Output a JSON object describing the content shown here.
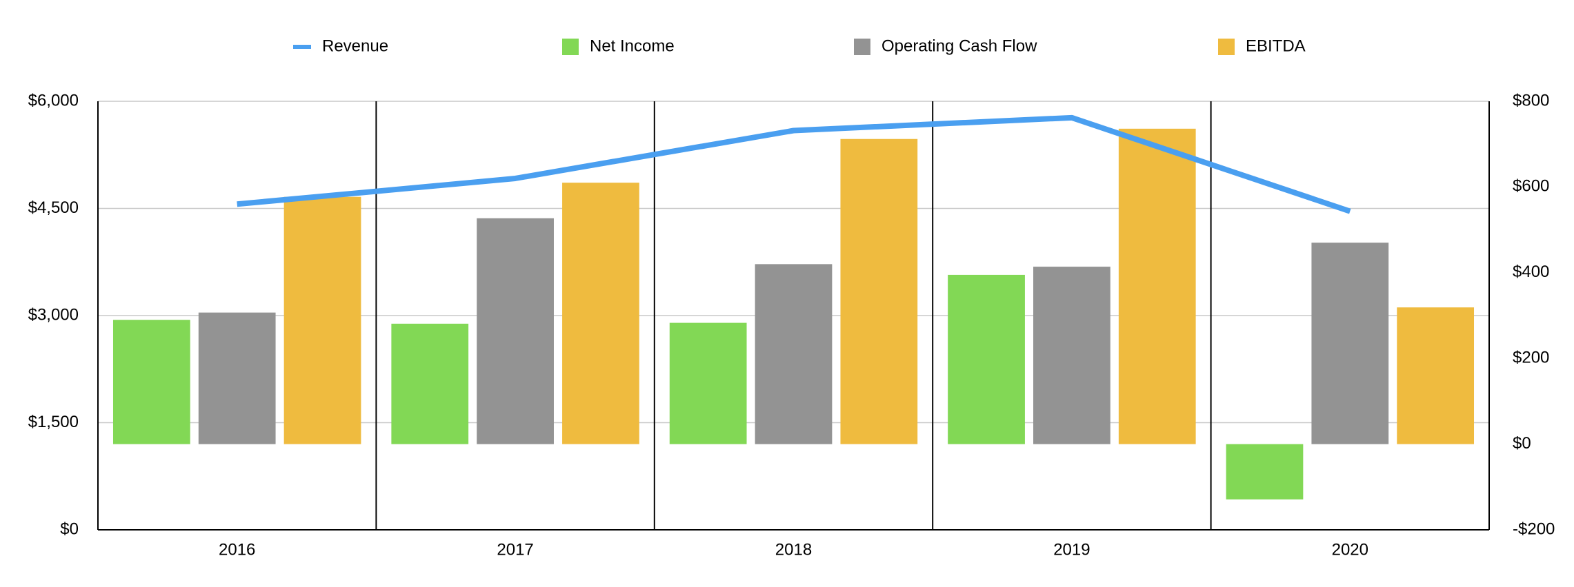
{
  "chart_data": {
    "type": "bar-line",
    "categories": [
      "2016",
      "2017",
      "2018",
      "2019",
      "2020"
    ],
    "series": [
      {
        "name": "Revenue",
        "type": "line",
        "color": "#4a9ff0",
        "values": [
          4560,
          4920,
          5590,
          5770,
          4460
        ]
      },
      {
        "name": "Net Income",
        "type": "bar",
        "axis": "y2",
        "color": "#82d855",
        "values": [
          290,
          281,
          283,
          395,
          -129
        ]
      },
      {
        "name": "Operating Cash Flow",
        "type": "bar",
        "axis": "y2",
        "color": "#939393",
        "values": [
          307,
          527,
          420,
          414,
          470
        ]
      },
      {
        "name": "EBITDA",
        "type": "bar",
        "axis": "y2",
        "color": "#efbb3f",
        "values": [
          577,
          610,
          712,
          736,
          319
        ]
      }
    ],
    "ylim": [
      0,
      6000
    ],
    "yticks": [
      {
        "value": 0,
        "label": "$0"
      },
      {
        "value": 1500,
        "label": "$1,500"
      },
      {
        "value": 3000,
        "label": "$3,000"
      },
      {
        "value": 4500,
        "label": "$4,500"
      },
      {
        "value": 6000,
        "label": "$6,000"
      }
    ],
    "y2lim": [
      -200,
      800
    ],
    "y2ticks": [
      {
        "value": -200,
        "label": "-$200"
      },
      {
        "value": 0,
        "label": "$0"
      },
      {
        "value": 200,
        "label": "$200"
      },
      {
        "value": 400,
        "label": "$400"
      },
      {
        "value": 600,
        "label": "$600"
      },
      {
        "value": 800,
        "label": "$800"
      }
    ],
    "grid": true,
    "legend": "top"
  }
}
